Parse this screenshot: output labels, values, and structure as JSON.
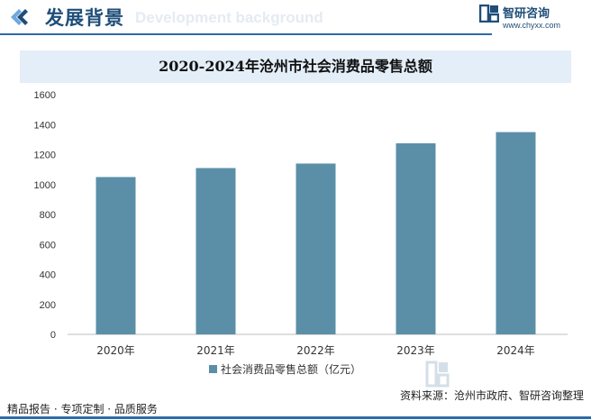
{
  "header": {
    "title": "发展背景",
    "ghost_text": "Development background",
    "brand_name": "智研咨询",
    "brand_url": "www.chyxx.com"
  },
  "footer": {
    "left": "精品报告 · 专项定制 · 品质服务",
    "source": "资料来源：沧州市政府、智研咨询整理"
  },
  "watermark": {
    "text": "智研咨询"
  },
  "colors": {
    "bar": "#5b8fa8",
    "header": "#1f4e79",
    "title_band": "#e3eef8"
  },
  "chart_data": {
    "type": "bar",
    "title": "2020-2024年沧州市社会消费品零售总额",
    "categories": [
      "2020年",
      "2021年",
      "2022年",
      "2023年",
      "2024年"
    ],
    "series": [
      {
        "name": "社会消费品零售总额（亿元）",
        "values": [
          1050,
          1110,
          1140,
          1275,
          1350
        ]
      }
    ],
    "ylim": [
      0,
      1600
    ],
    "yticks": [
      0,
      200,
      400,
      600,
      800,
      1000,
      1200,
      1400,
      1600
    ],
    "grid": false,
    "legend": "bottom"
  }
}
